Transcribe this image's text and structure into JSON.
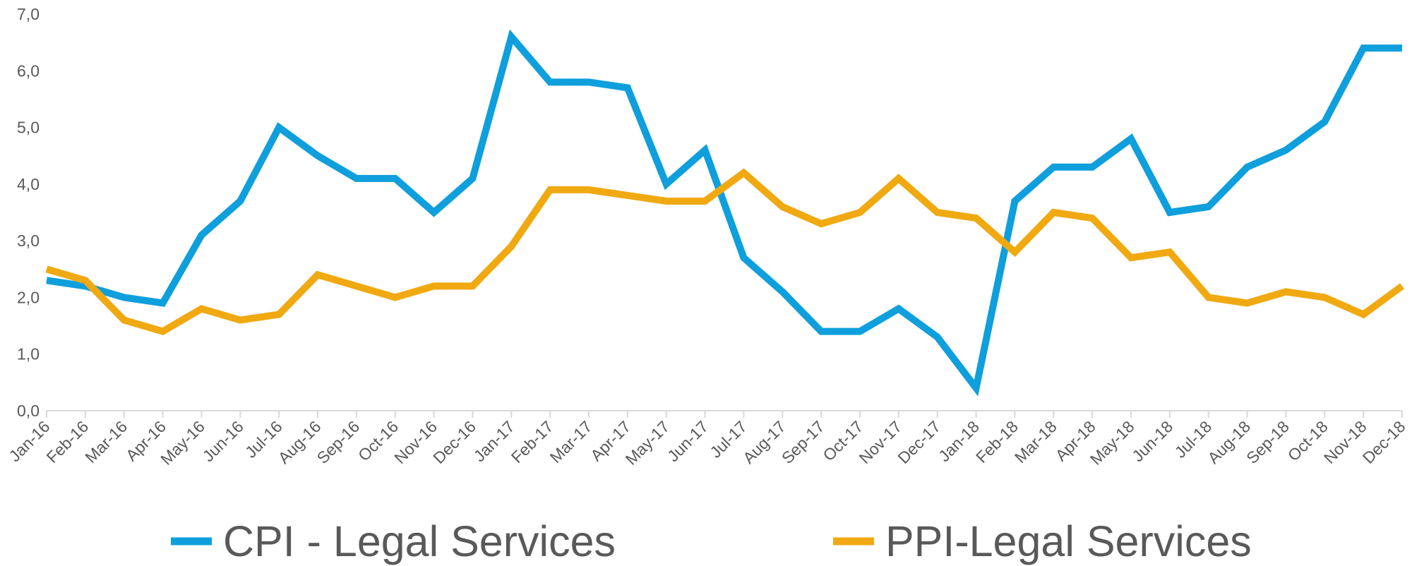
{
  "chart_data": {
    "type": "line",
    "categories": [
      "Jan-16",
      "Feb-16",
      "Mar-16",
      "Apr-16",
      "May-16",
      "Jun-16",
      "Jul-16",
      "Aug-16",
      "Sep-16",
      "Oct-16",
      "Nov-16",
      "Dec-16",
      "Jan-17",
      "Feb-17",
      "Mar-17",
      "Apr-17",
      "May-17",
      "Jun-17",
      "Jul-17",
      "Aug-17",
      "Sep-17",
      "Oct-17",
      "Nov-17",
      "Dec-17",
      "Jan-18",
      "Feb-18",
      "Mar-18",
      "Apr-18",
      "May-18",
      "Jun-18",
      "Jul-18",
      "Aug-18",
      "Sep-18",
      "Oct-18",
      "Nov-18",
      "Dec-18"
    ],
    "series": [
      {
        "name": "CPI - Legal Services",
        "color": "#0e9fdc",
        "values": [
          2.3,
          2.2,
          2.0,
          1.9,
          3.1,
          3.7,
          5.0,
          4.5,
          4.1,
          4.1,
          3.5,
          4.1,
          6.6,
          5.8,
          5.8,
          5.7,
          4.0,
          4.6,
          2.7,
          2.1,
          1.4,
          1.4,
          1.8,
          1.3,
          0.4,
          3.7,
          4.3,
          4.3,
          4.8,
          3.5,
          3.6,
          4.3,
          4.6,
          5.1,
          6.4,
          6.4
        ]
      },
      {
        "name": "PPI-Legal Services",
        "color": "#f0a911",
        "values": [
          2.5,
          2.3,
          1.6,
          1.4,
          1.8,
          1.6,
          1.7,
          2.4,
          2.2,
          2.0,
          2.2,
          2.2,
          2.9,
          3.9,
          3.9,
          3.8,
          3.7,
          3.7,
          4.2,
          3.6,
          3.3,
          3.5,
          4.1,
          3.5,
          3.4,
          2.8,
          3.5,
          3.4,
          2.7,
          2.8,
          2.0,
          1.9,
          2.1,
          2.0,
          1.7,
          2.2
        ]
      }
    ],
    "ylim": [
      0,
      7
    ],
    "yticks": [
      {
        "value": 0,
        "label": "0,0"
      },
      {
        "value": 1,
        "label": "1,0"
      },
      {
        "value": 2,
        "label": "2,0"
      },
      {
        "value": 3,
        "label": "3,0"
      },
      {
        "value": 4,
        "label": "4,0"
      },
      {
        "value": 5,
        "label": "5,0"
      },
      {
        "value": 6,
        "label": "6,0"
      },
      {
        "value": 7,
        "label": "7,0"
      }
    ],
    "grid": false,
    "legend": "bottom"
  }
}
